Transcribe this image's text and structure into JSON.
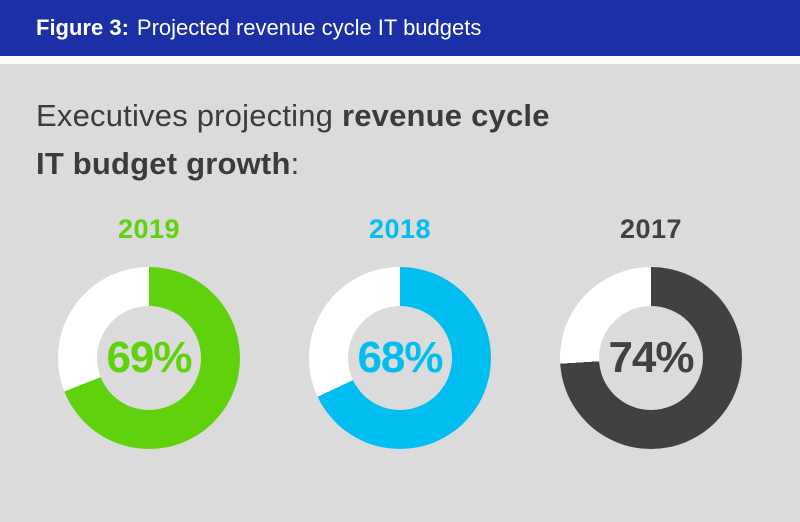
{
  "header": {
    "figure_label": "Figure 3:",
    "figure_title": "Projected revenue cycle IT budgets"
  },
  "heading": {
    "line1_normal": "Executives projecting ",
    "line1_bold": "revenue cycle",
    "line2_bold": "IT budget growth",
    "line2_colon": ":"
  },
  "colors": {
    "header_bg": "#1B2FA6",
    "header_text": "#FFFFFF",
    "panel_bg": "#DBDBDB",
    "heading_text": "#3B3B3B",
    "donut_empty": "#FFFFFF"
  },
  "chart_data": {
    "type": "pie",
    "subtype": "donut",
    "title": "Executives projecting revenue cycle IT budget growth",
    "legend_position": "none",
    "unfilled_color": "#FFFFFF",
    "fill_start": "top",
    "fill_direction": "clockwise",
    "series": [
      {
        "label": "2019",
        "value": 69,
        "display": "69%",
        "color": "#5FD10D"
      },
      {
        "label": "2018",
        "value": 68,
        "display": "68%",
        "color": "#00BEF0"
      },
      {
        "label": "2017",
        "value": 74,
        "display": "74%",
        "color": "#414142"
      }
    ]
  }
}
